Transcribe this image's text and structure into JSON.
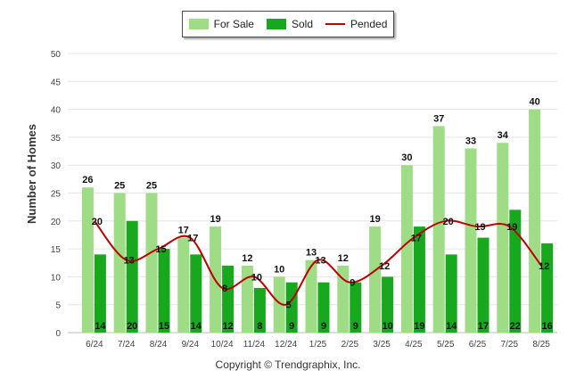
{
  "legend": {
    "for_sale": "For Sale",
    "sold": "Sold",
    "pended": "Pended"
  },
  "copyright": "Copyright © Trendgraphix, Inc.",
  "colors": {
    "for_sale": "#9fdc86",
    "sold": "#18a81e",
    "pended": "#c00000"
  },
  "chart_data": {
    "type": "bar",
    "ylabel": "Number of Homes",
    "ylim": [
      0,
      50
    ],
    "yticks": [
      0,
      5,
      10,
      15,
      20,
      25,
      30,
      35,
      40,
      45,
      50
    ],
    "categories": [
      "6/24",
      "7/24",
      "8/24",
      "9/24",
      "10/24",
      "11/24",
      "12/24",
      "1/25",
      "2/25",
      "3/25",
      "4/25",
      "5/25",
      "6/25",
      "7/25",
      "8/25"
    ],
    "series": [
      {
        "name": "For Sale",
        "type": "bar",
        "values": [
          26,
          25,
          25,
          17,
          19,
          12,
          10,
          13,
          12,
          19,
          30,
          37,
          33,
          34,
          40
        ]
      },
      {
        "name": "Sold",
        "type": "bar",
        "values": [
          14,
          20,
          15,
          14,
          12,
          8,
          9,
          9,
          9,
          10,
          19,
          14,
          17,
          22,
          16
        ]
      },
      {
        "name": "Pended",
        "type": "line",
        "values": [
          20,
          13,
          15,
          17,
          8,
          10,
          5,
          13,
          9,
          12,
          17,
          20,
          19,
          19,
          12
        ]
      }
    ],
    "legend_position": "top-center",
    "grid": true
  }
}
